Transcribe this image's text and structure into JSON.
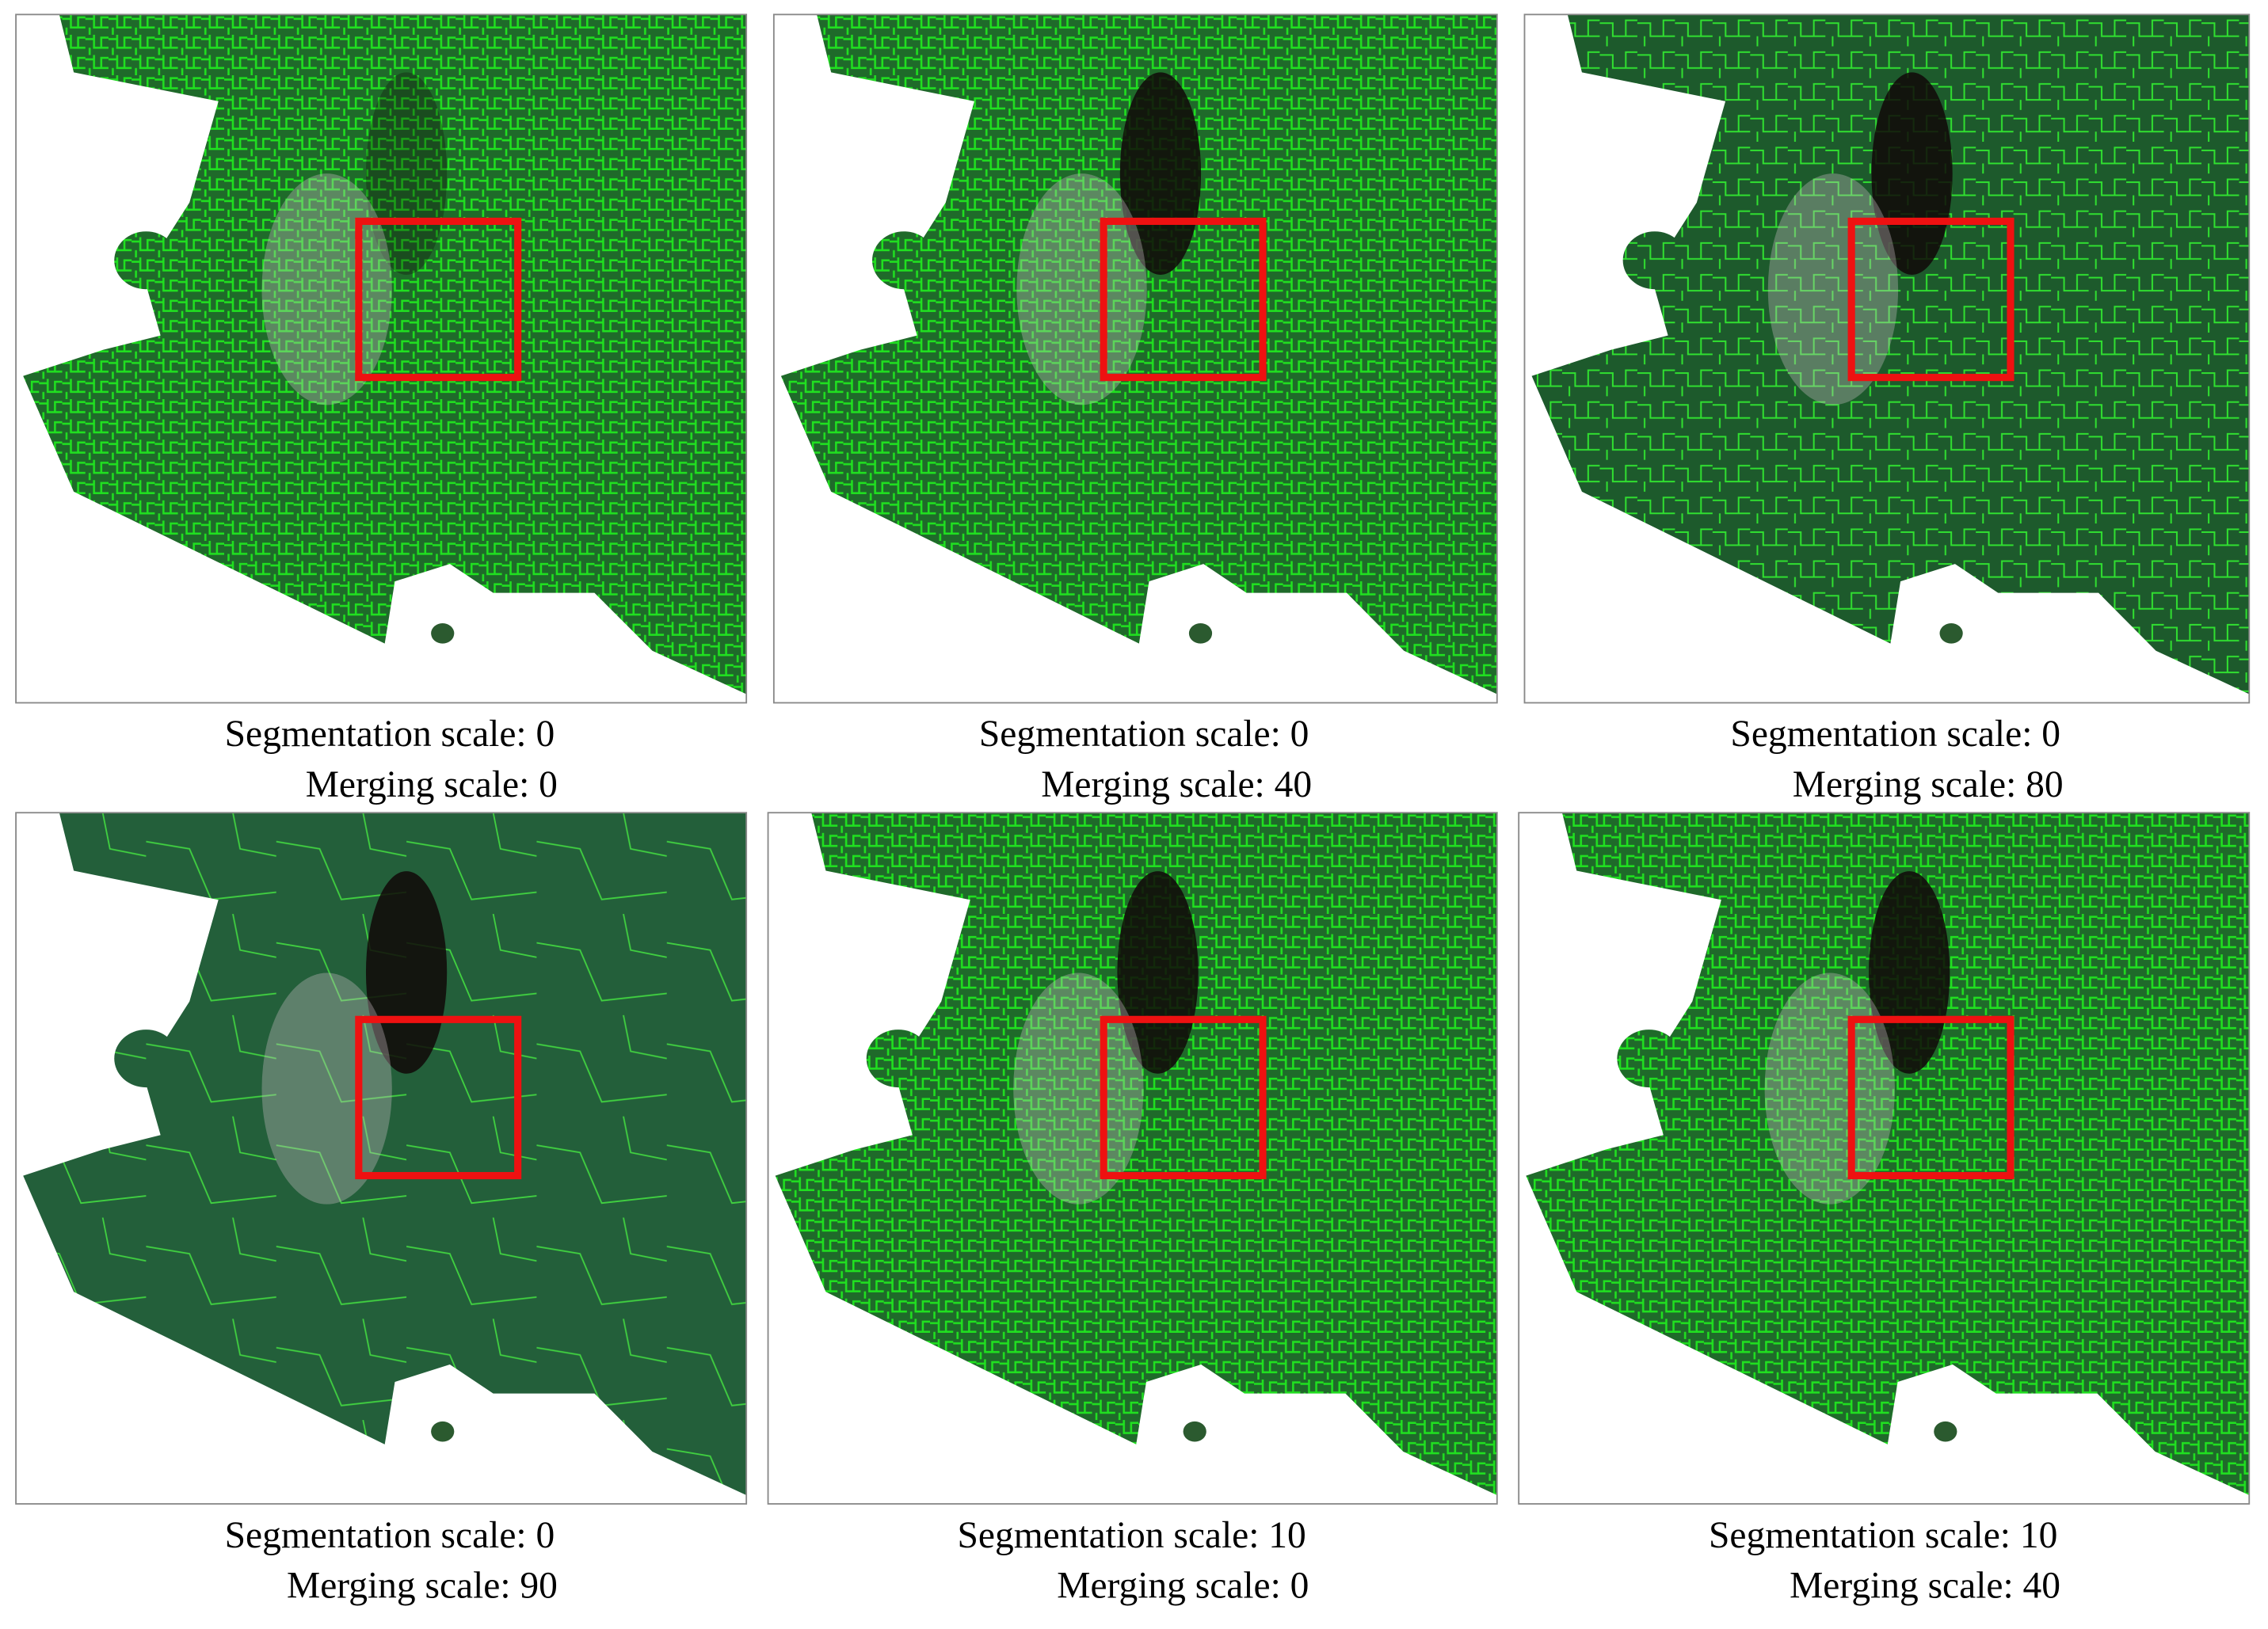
{
  "panels": [
    {
      "line1": "Segmentation scale: 0",
      "line2": "Merging scale: 0"
    },
    {
      "line1": "Segmentation scale: 0",
      "line2": "Merging scale: 40"
    },
    {
      "line1": "Segmentation scale: 0",
      "line2": "Merging scale: 80"
    },
    {
      "line1": "Segmentation scale: 0",
      "line2": "Merging scale: 90"
    },
    {
      "line1": "Segmentation scale: 10",
      "line2": "Merging scale: 0"
    },
    {
      "line1": "Segmentation scale: 10",
      "line2": "Merging scale: 40"
    }
  ]
}
